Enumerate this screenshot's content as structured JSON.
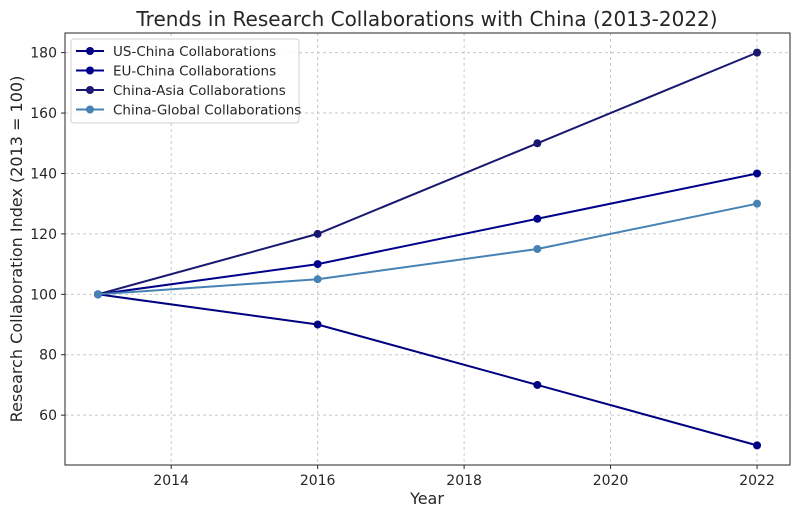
{
  "chart_data": {
    "type": "line",
    "title": "Trends in Research Collaborations with China (2013-2022)",
    "xlabel": "Year",
    "ylabel": "Research Collaboration Index (2013 = 100)",
    "x": [
      2013,
      2016,
      2019,
      2022
    ],
    "xlim": [
      2012.55,
      2022.45
    ],
    "ylim": [
      43.5,
      186.5
    ],
    "xticks": [
      2014,
      2016,
      2018,
      2020,
      2022
    ],
    "yticks": [
      60,
      80,
      100,
      120,
      140,
      160,
      180
    ],
    "grid": true,
    "legend_placement": "top-left",
    "series": [
      {
        "name": "US-China Collaborations",
        "values": [
          100,
          90,
          70,
          50
        ],
        "color": "#000080"
      },
      {
        "name": "EU-China Collaborations",
        "values": [
          100,
          110,
          125,
          140
        ],
        "color": "#00008B"
      },
      {
        "name": "China-Asia Collaborations",
        "values": [
          100,
          120,
          150,
          180
        ],
        "color": "#191970"
      },
      {
        "name": "China-Global Collaborations",
        "values": [
          100,
          105,
          115,
          130
        ],
        "color": "#4682B4"
      }
    ]
  }
}
